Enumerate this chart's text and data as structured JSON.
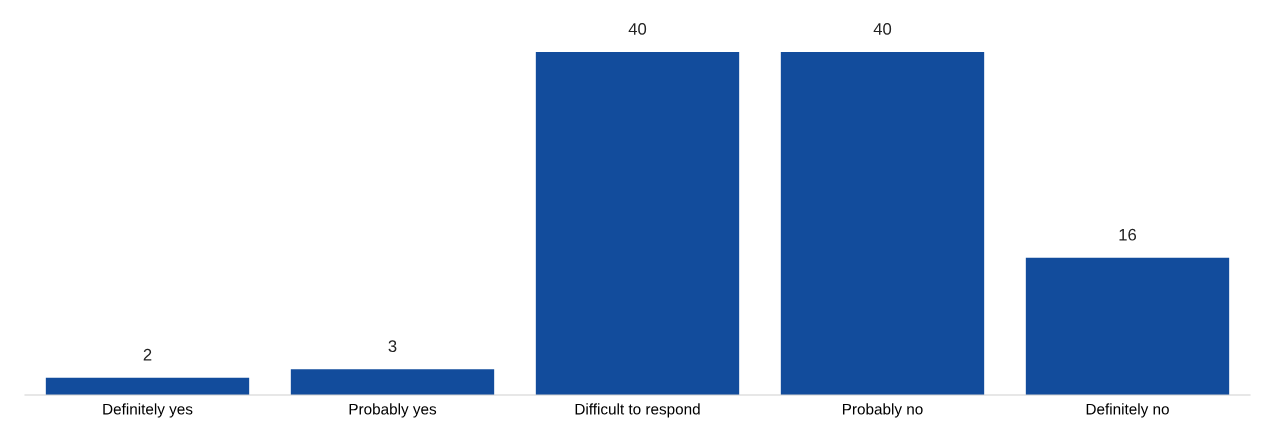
{
  "chart_data": {
    "type": "bar",
    "categories": [
      "Definitely yes",
      "Probably yes",
      "Difficult to respond",
      "Probably no",
      "Definitely no"
    ],
    "values": [
      2,
      3,
      40,
      40,
      16
    ],
    "color": "#124c9c",
    "data_labels": true,
    "grid": false,
    "legend": false
  }
}
